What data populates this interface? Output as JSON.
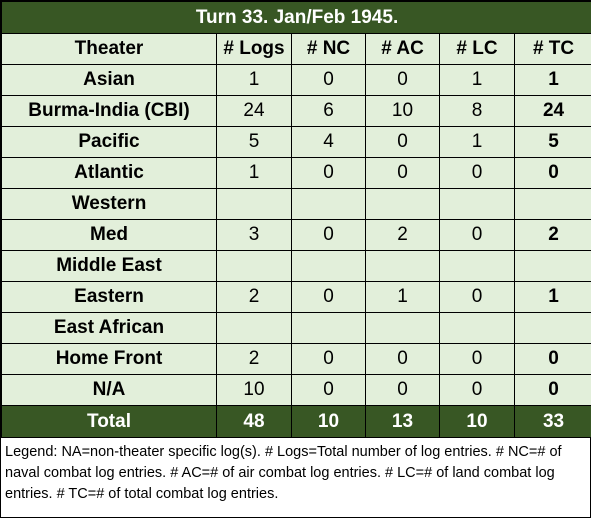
{
  "title": "Turn 33.  Jan/Feb 1945.",
  "headers": [
    "Theater",
    "# Logs",
    "# NC",
    "# AC",
    "# LC",
    "# TC"
  ],
  "rows": [
    {
      "theater": "Asian",
      "logs": "1",
      "nc": "0",
      "ac": "0",
      "lc": "1",
      "tc": "1"
    },
    {
      "theater": "Burma-India (CBI)",
      "logs": "24",
      "nc": "6",
      "ac": "10",
      "lc": "8",
      "tc": "24"
    },
    {
      "theater": "Pacific",
      "logs": "5",
      "nc": "4",
      "ac": "0",
      "lc": "1",
      "tc": "5"
    },
    {
      "theater": "Atlantic",
      "logs": "1",
      "nc": "0",
      "ac": "0",
      "lc": "0",
      "tc": "0"
    },
    {
      "theater": "Western",
      "logs": "",
      "nc": "",
      "ac": "",
      "lc": "",
      "tc": ""
    },
    {
      "theater": "Med",
      "logs": "3",
      "nc": "0",
      "ac": "2",
      "lc": "0",
      "tc": "2"
    },
    {
      "theater": "Middle East",
      "logs": "",
      "nc": "",
      "ac": "",
      "lc": "",
      "tc": ""
    },
    {
      "theater": "Eastern",
      "logs": "2",
      "nc": "0",
      "ac": "1",
      "lc": "0",
      "tc": "1"
    },
    {
      "theater": "East African",
      "logs": "",
      "nc": "",
      "ac": "",
      "lc": "",
      "tc": ""
    },
    {
      "theater": "Home Front",
      "logs": "2",
      "nc": "0",
      "ac": "0",
      "lc": "0",
      "tc": "0"
    },
    {
      "theater": "N/A",
      "logs": "10",
      "nc": "0",
      "ac": "0",
      "lc": "0",
      "tc": "0"
    }
  ],
  "total": {
    "theater": "Total",
    "logs": "48",
    "nc": "10",
    "ac": "13",
    "lc": "10",
    "tc": "33"
  },
  "legend": "Legend:  NA=non-theater specific log(s).  # Logs=Total number of log entries.  # NC=# of naval combat log entries.  # AC=# of air combat log entries.  # LC=# of land combat log entries.  # TC=# of total combat log entries.",
  "colors": {
    "header_green": "#385724",
    "cell_green": "#e2efda"
  }
}
